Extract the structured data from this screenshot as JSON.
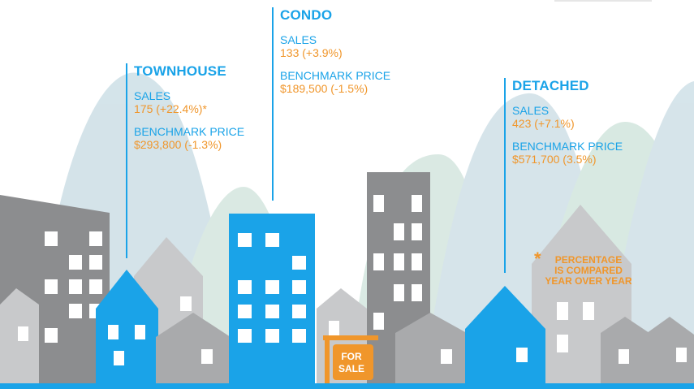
{
  "townhouse": {
    "title": "TOWNHOUSE",
    "sales_label": "SALES",
    "sales_value": "175 (+22.4%)*",
    "price_label": "BENCHMARK PRICE",
    "price_value": "$293,800 (-1.3%)"
  },
  "condo": {
    "title": "CONDO",
    "sales_label": "SALES",
    "sales_value": "133 (+3.9%)",
    "price_label": "BENCHMARK PRICE",
    "price_value": "$189,500 (-1.5%)"
  },
  "detached": {
    "title": "DETACHED",
    "sales_label": "SALES",
    "sales_value": "423 (+7.1%)",
    "price_label": "BENCHMARK PRICE",
    "price_value": "$571,700 (3.5%)"
  },
  "note": {
    "star": "*",
    "text_line1": "PERCENTAGE",
    "text_line2": "IS COMPARED",
    "text_line3": "YEAR OVER YEAR"
  },
  "sign": {
    "line1": "FOR",
    "line2": "SALE"
  },
  "colors": {
    "accent_blue": "#1aa3e8",
    "accent_orange": "#f0962b",
    "gray_dark": "#8c8d8f",
    "gray_mid": "#a9aaac",
    "gray_light": "#c8c9cb",
    "hill_blue": "#c6dde6",
    "hill_green": "#cfe3dc"
  }
}
